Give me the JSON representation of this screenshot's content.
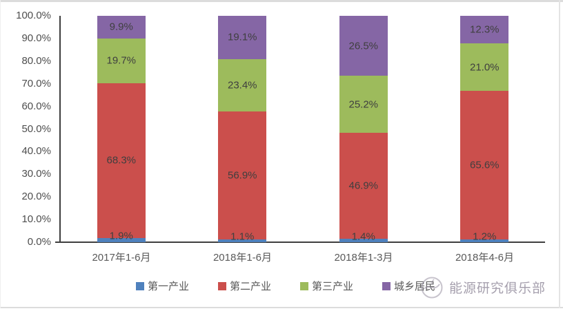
{
  "chart_data": {
    "type": "bar",
    "stacked": true,
    "percent_stacked": true,
    "title": "",
    "xlabel": "",
    "ylabel": "",
    "grid": false,
    "legend_position": "bottom",
    "ylim": [
      0,
      100
    ],
    "y_ticks": [
      "100.0%",
      "90.0%",
      "80.0%",
      "70.0%",
      "60.0%",
      "50.0%",
      "40.0%",
      "30.0%",
      "20.0%",
      "10.0%",
      "0.0%"
    ],
    "categories": [
      "2017年1-6月",
      "2018年1-6月",
      "2018年1-3月",
      "2018年4-6月"
    ],
    "series": [
      {
        "name": "第一产业",
        "color": "#4F81BD",
        "values": [
          1.9,
          1.1,
          1.4,
          1.2
        ]
      },
      {
        "name": "第二产业",
        "color": "#CB4F4C",
        "values": [
          68.3,
          56.9,
          46.9,
          65.6
        ]
      },
      {
        "name": "第三产业",
        "color": "#9DBB5C",
        "values": [
          19.7,
          23.4,
          25.2,
          21.0
        ]
      },
      {
        "name": "城乡居民",
        "color": "#8566A5",
        "values": [
          9.9,
          19.1,
          26.5,
          12.3
        ]
      }
    ],
    "data_labels": [
      "%",
      "one decimal"
    ]
  },
  "watermark": {
    "text": "能源研究俱乐部",
    "icon": "energy-club-logo"
  }
}
